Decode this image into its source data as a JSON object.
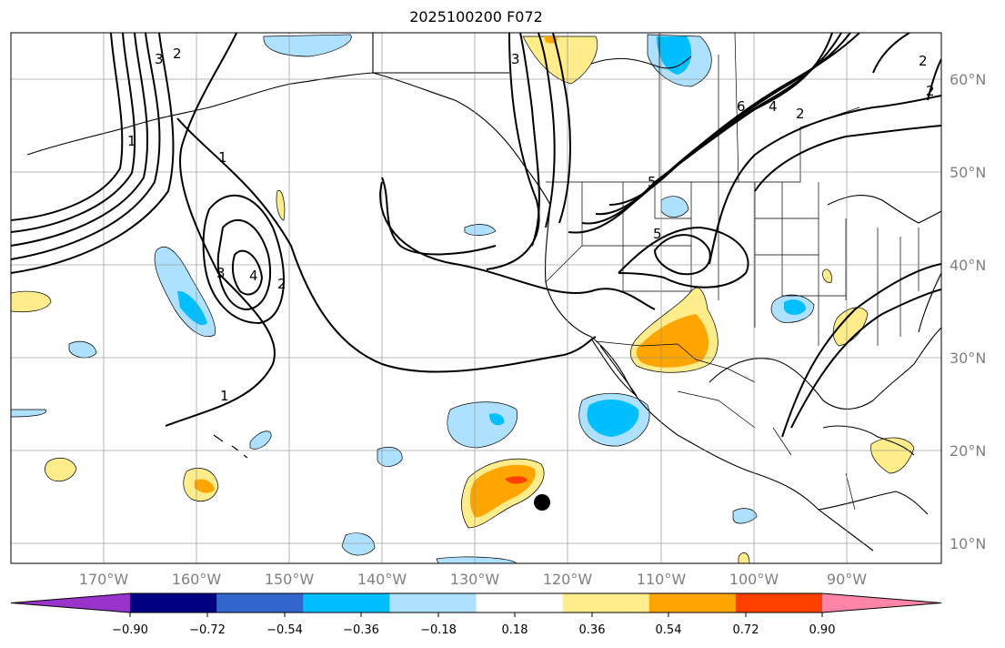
{
  "title": "2025100200 F072",
  "map": {
    "lon_labels": [
      "170°W",
      "160°W",
      "150°W",
      "140°W",
      "130°W",
      "120°W",
      "110°W",
      "100°W",
      "90°W"
    ],
    "lat_labels": [
      "60°N",
      "50°N",
      "40°N",
      "30°N",
      "20°N",
      "10°N"
    ],
    "contour_labels": [
      "1",
      "1",
      "2",
      "3",
      "4",
      "2",
      "3",
      "5",
      "5",
      "2",
      "4",
      "6",
      "2",
      "3",
      "2",
      "1"
    ],
    "grid": true,
    "marker": "storm-center-dot"
  },
  "colorbar": {
    "ticks": [
      "−0.90",
      "−0.72",
      "−0.54",
      "−0.36",
      "−0.18",
      "0.18",
      "0.36",
      "0.54",
      "0.72",
      "0.90"
    ],
    "colors": [
      "#9933cc",
      "#000080",
      "#3366cc",
      "#00bfff",
      "#aee1ff",
      "#ffffff",
      "#ffec8b",
      "#ffa500",
      "#ff4000",
      "#b22222",
      "#ff85a8"
    ],
    "extend": "both"
  }
}
